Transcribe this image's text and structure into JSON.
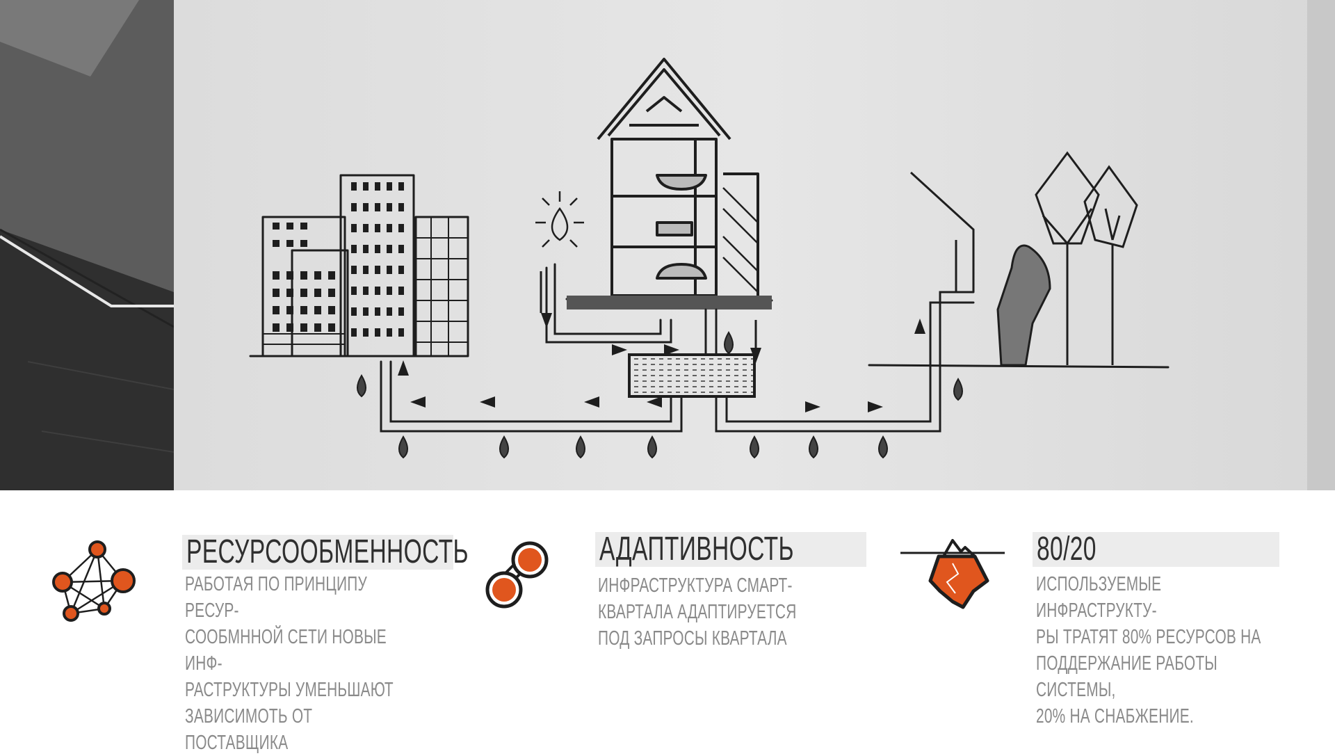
{
  "features": [
    {
      "icon": "network-nodes-icon",
      "title": "РЕСУРСООБМЕННОСТЬ",
      "description": "РАБОТАЯ ПО ПРИНЦИПУ РЕСУР-\nСООБМННОЙ СЕТИ НОВЫЕ ИНФ-\nРАСТРУКТУРЫ УМЕНЬШАЮТ\nЗАВИСИМОТЬ ОТ ПОСТАВЩИКА"
    },
    {
      "icon": "linked-circles-icon",
      "title": "АДАПТИВНОСТЬ",
      "description": "ИНФРАСТРУКТУРА СМАРТ-\nКВАРТАЛА АДАПТИРУЕТСЯ\nПОД ЗАПРОСЫ КВАРТАЛА"
    },
    {
      "icon": "iceberg-icon",
      "title": "80/20",
      "description": "ИСПОЛЬЗУЕМЫЕ ИНФРАСТРУКТУ-\nРЫ ТРАТЯТ 80% РЕСУРСОВ НА\nПОДДЕРЖАНИЕ РАБОТЫ СИСТЕМЫ,\n20% НА СНАБЖЕНИЕ."
    }
  ],
  "colors": {
    "accent": "#e0561e",
    "heading_bg": "#ececec",
    "heading_text": "#2f2f2f",
    "body_text": "#8a8a8a"
  }
}
